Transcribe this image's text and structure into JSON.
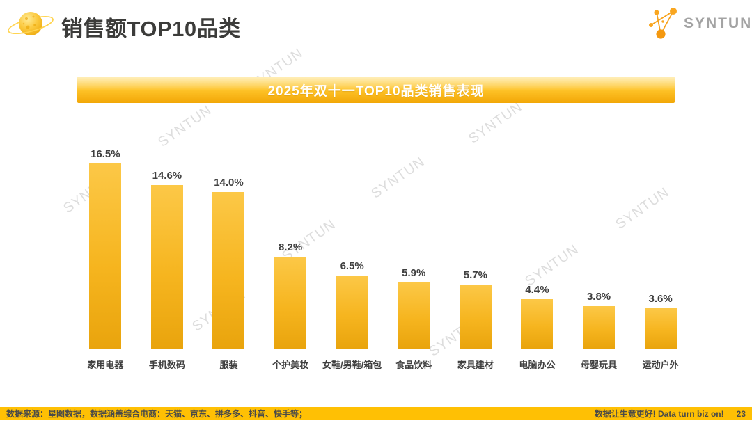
{
  "header": {
    "title": "销售额TOP10品类",
    "brand": "SYNTUN"
  },
  "banner": {
    "title": "2025年双十一TOP10品类销售表现"
  },
  "chart_data": {
    "type": "bar",
    "title": "2025年双十一TOP10品类销售表现",
    "categories": [
      "家用电器",
      "手机数码",
      "服装",
      "个护美妆",
      "女鞋/男鞋/箱包",
      "食品饮料",
      "家具建材",
      "电脑办公",
      "母婴玩具",
      "运动户外"
    ],
    "values": [
      16.5,
      14.6,
      14.0,
      8.2,
      6.5,
      5.9,
      5.7,
      4.4,
      3.8,
      3.6
    ],
    "value_labels": [
      "16.5%",
      "14.6%",
      "14.0%",
      "8.2%",
      "6.5%",
      "5.9%",
      "5.7%",
      "4.4%",
      "3.8%",
      "3.6%"
    ],
    "xlabel": "",
    "ylabel": "",
    "ylim": [
      0,
      19
    ],
    "grid": false,
    "legend": false,
    "bar_color_top": "#fcc847",
    "bar_color_bottom": "#e9a40d"
  },
  "watermark": {
    "text": "SYNTUN"
  },
  "footer": {
    "left": "数据来源：星图数据，数据涵盖综合电商：天猫、京东、拼多多、抖音、快手等；",
    "right": "数据让生意更好! Data turn biz on!",
    "page": "23"
  },
  "colors": {
    "accent_gold": "#ffc004",
    "title_text": "#3c3c3a",
    "banner_text": "#ffffff",
    "watermark_gray": "#c7c7c7"
  }
}
